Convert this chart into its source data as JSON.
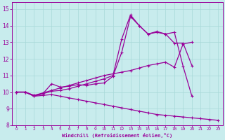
{
  "bg_color": "#c8eced",
  "line_color": "#990099",
  "grid_color": "#a8d8d8",
  "xlabel": "Windchill (Refroidissement éolien,°C)",
  "xlim": [
    -0.5,
    23.5
  ],
  "ylim": [
    8,
    15.4
  ],
  "yticks": [
    8,
    9,
    10,
    11,
    12,
    13,
    14,
    15
  ],
  "xticks": [
    0,
    1,
    2,
    3,
    4,
    5,
    6,
    7,
    8,
    9,
    10,
    11,
    12,
    13,
    14,
    15,
    16,
    17,
    18,
    19,
    20,
    21,
    22,
    23
  ],
  "lines": [
    {
      "x": [
        0,
        1,
        2,
        3,
        4,
        5,
        6,
        7,
        8,
        9,
        10,
        11,
        12,
        13,
        14,
        15,
        16,
        17,
        18,
        19,
        20,
        21
      ],
      "y": [
        10.0,
        10.0,
        9.8,
        9.9,
        10.5,
        10.3,
        10.35,
        10.45,
        10.4,
        10.5,
        10.55,
        10.95,
        12.4,
        14.55,
        14.0,
        13.5,
        13.6,
        13.5,
        13.6,
        11.55,
        9.75,
        null
      ]
    },
    {
      "x": [
        0,
        1,
        2,
        3,
        4,
        5,
        6,
        7,
        8,
        9,
        10,
        11,
        12,
        13,
        14,
        15,
        16,
        17,
        18,
        19,
        20
      ],
      "y": [
        10.0,
        10.0,
        9.75,
        9.9,
        10.05,
        10.1,
        10.2,
        10.35,
        10.5,
        10.65,
        10.8,
        11.0,
        13.2,
        14.65,
        14.0,
        13.5,
        13.65,
        13.5,
        12.95,
        12.95,
        11.6
      ]
    },
    {
      "x": [
        0,
        1,
        2,
        3,
        4,
        5,
        6,
        7,
        8,
        9,
        10,
        11,
        12,
        13,
        14,
        15,
        16,
        17,
        18,
        19,
        20
      ],
      "y": [
        10.0,
        10.0,
        9.8,
        9.95,
        10.1,
        10.25,
        10.4,
        10.55,
        10.7,
        10.85,
        11.0,
        11.1,
        11.2,
        11.3,
        11.45,
        11.6,
        11.7,
        11.8,
        11.5,
        12.9,
        13.0
      ]
    },
    {
      "x": [
        0,
        1,
        2,
        3,
        4,
        5,
        6,
        7,
        8,
        9,
        10,
        11,
        12,
        13,
        14,
        15,
        16,
        17,
        18,
        19,
        20,
        21,
        22,
        23
      ],
      "y": [
        10.0,
        10.0,
        9.75,
        9.8,
        9.85,
        9.75,
        9.65,
        9.55,
        9.45,
        9.35,
        9.25,
        9.15,
        9.05,
        8.95,
        8.85,
        8.75,
        8.65,
        8.6,
        8.55,
        8.5,
        8.45,
        8.4,
        8.35,
        8.3
      ]
    }
  ],
  "markersize": 3,
  "linewidth": 0.9
}
